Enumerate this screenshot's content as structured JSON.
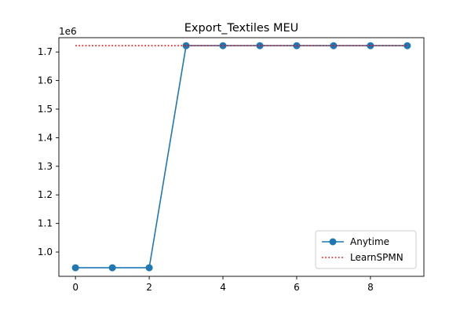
{
  "chart_data": {
    "type": "line",
    "title": "Export_Textiles MEU",
    "xlabel": "",
    "ylabel": "",
    "y_offset_label": "1e6",
    "xlim": [
      -0.45,
      9.45
    ],
    "ylim": [
      915000,
      1750000
    ],
    "x_ticks": [
      0,
      2,
      4,
      6,
      8
    ],
    "x_tick_labels": [
      "0",
      "2",
      "4",
      "6",
      "8"
    ],
    "y_ticks": [
      1000000,
      1100000,
      1200000,
      1300000,
      1400000,
      1500000,
      1600000,
      1700000
    ],
    "y_tick_labels": [
      "1.0",
      "1.1",
      "1.2",
      "1.3",
      "1.4",
      "1.5",
      "1.6",
      "1.7"
    ],
    "grid": false,
    "legend_position": "lower-right",
    "series": [
      {
        "name": "Anytime",
        "style": "line-marker",
        "color": "#1f77b4",
        "x": [
          0,
          1,
          2,
          3,
          4,
          5,
          6,
          7,
          8,
          9
        ],
        "values": [
          945000,
          945000,
          945000,
          1722000,
          1722000,
          1722000,
          1722000,
          1722000,
          1722000,
          1722000
        ]
      },
      {
        "name": "LearnSPMN",
        "style": "dotted",
        "color": "#ff0000",
        "x": [
          0,
          9
        ],
        "values": [
          1722000,
          1722000
        ]
      }
    ]
  }
}
